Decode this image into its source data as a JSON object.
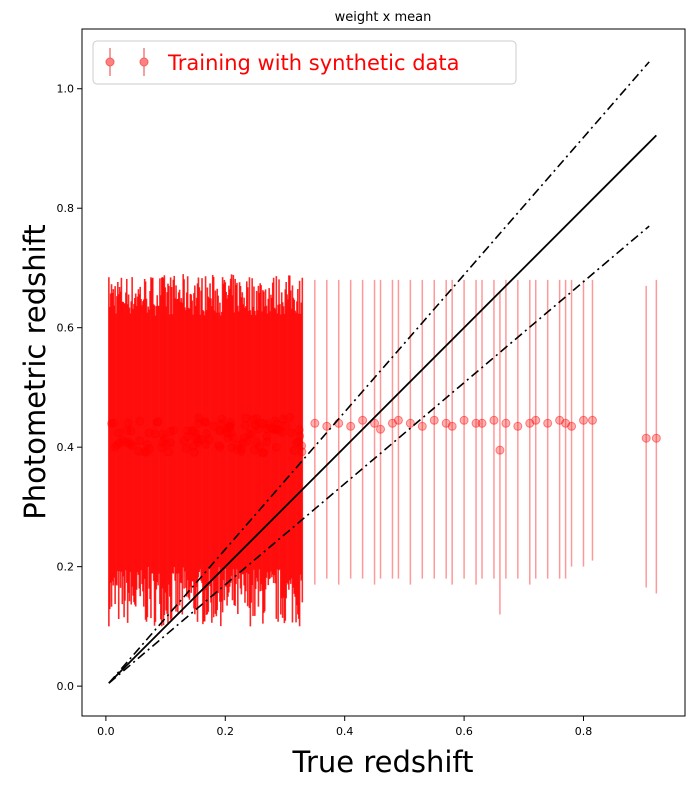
{
  "chart_data": {
    "type": "scatter",
    "title": "weight x mean",
    "xlabel": "True redshift",
    "ylabel": "Photometric redshift",
    "xlim": [
      -0.04,
      0.97
    ],
    "ylim": [
      -0.05,
      1.1
    ],
    "xticks": [
      "0.0",
      "0.2",
      "0.4",
      "0.6",
      "0.8"
    ],
    "yticks": [
      "0.0",
      "0.2",
      "0.4",
      "0.6",
      "0.8",
      "1.0"
    ],
    "grid": false,
    "legend": {
      "placement": "top-left",
      "entries": [
        {
          "label": "Training with synthetic data",
          "color": "#ff0000"
        }
      ]
    },
    "series": [
      {
        "name": "Training with synthetic data",
        "color": "#ff0000",
        "marker": "circle",
        "error_bars": "vertical",
        "dense_region": {
          "x_range": [
            0.005,
            0.33
          ],
          "y_mean": 0.42,
          "yerr_low": [
            0.1,
            0.2
          ],
          "yerr_high": [
            0.62,
            0.69
          ]
        },
        "points": [
          {
            "x": 0.35,
            "y": 0.44,
            "ylo": 0.17,
            "yhi": 0.68
          },
          {
            "x": 0.37,
            "y": 0.435,
            "ylo": 0.18,
            "yhi": 0.68
          },
          {
            "x": 0.39,
            "y": 0.44,
            "ylo": 0.17,
            "yhi": 0.68
          },
          {
            "x": 0.41,
            "y": 0.435,
            "ylo": 0.18,
            "yhi": 0.68
          },
          {
            "x": 0.43,
            "y": 0.445,
            "ylo": 0.18,
            "yhi": 0.68
          },
          {
            "x": 0.45,
            "y": 0.44,
            "ylo": 0.17,
            "yhi": 0.68
          },
          {
            "x": 0.46,
            "y": 0.43,
            "ylo": 0.18,
            "yhi": 0.68
          },
          {
            "x": 0.48,
            "y": 0.44,
            "ylo": 0.18,
            "yhi": 0.68
          },
          {
            "x": 0.49,
            "y": 0.445,
            "ylo": 0.18,
            "yhi": 0.68
          },
          {
            "x": 0.51,
            "y": 0.44,
            "ylo": 0.17,
            "yhi": 0.68
          },
          {
            "x": 0.53,
            "y": 0.435,
            "ylo": 0.18,
            "yhi": 0.68
          },
          {
            "x": 0.55,
            "y": 0.445,
            "ylo": 0.18,
            "yhi": 0.68
          },
          {
            "x": 0.57,
            "y": 0.44,
            "ylo": 0.18,
            "yhi": 0.68
          },
          {
            "x": 0.58,
            "y": 0.435,
            "ylo": 0.17,
            "yhi": 0.68
          },
          {
            "x": 0.6,
            "y": 0.445,
            "ylo": 0.18,
            "yhi": 0.68
          },
          {
            "x": 0.62,
            "y": 0.44,
            "ylo": 0.17,
            "yhi": 0.68
          },
          {
            "x": 0.63,
            "y": 0.44,
            "ylo": 0.18,
            "yhi": 0.68
          },
          {
            "x": 0.65,
            "y": 0.445,
            "ylo": 0.18,
            "yhi": 0.68
          },
          {
            "x": 0.66,
            "y": 0.395,
            "ylo": 0.12,
            "yhi": 0.66
          },
          {
            "x": 0.67,
            "y": 0.44,
            "ylo": 0.18,
            "yhi": 0.68
          },
          {
            "x": 0.69,
            "y": 0.435,
            "ylo": 0.18,
            "yhi": 0.68
          },
          {
            "x": 0.71,
            "y": 0.44,
            "ylo": 0.17,
            "yhi": 0.68
          },
          {
            "x": 0.72,
            "y": 0.445,
            "ylo": 0.18,
            "yhi": 0.68
          },
          {
            "x": 0.74,
            "y": 0.44,
            "ylo": 0.18,
            "yhi": 0.68
          },
          {
            "x": 0.76,
            "y": 0.445,
            "ylo": 0.18,
            "yhi": 0.68
          },
          {
            "x": 0.77,
            "y": 0.44,
            "ylo": 0.18,
            "yhi": 0.68
          },
          {
            "x": 0.78,
            "y": 0.435,
            "ylo": 0.2,
            "yhi": 0.68
          },
          {
            "x": 0.8,
            "y": 0.445,
            "ylo": 0.2,
            "yhi": 0.68
          },
          {
            "x": 0.815,
            "y": 0.445,
            "ylo": 0.21,
            "yhi": 0.68
          },
          {
            "x": 0.905,
            "y": 0.415,
            "ylo": 0.165,
            "yhi": 0.67
          },
          {
            "x": 0.922,
            "y": 0.415,
            "ylo": 0.155,
            "yhi": 0.68
          }
        ]
      },
      {
        "kind": "line",
        "style": "solid",
        "color": "#000000",
        "x": [
          0.005,
          0.922
        ],
        "y": [
          0.005,
          0.922
        ]
      },
      {
        "kind": "line",
        "style": "dashdot",
        "color": "#000000",
        "x": [
          0.005,
          0.91
        ],
        "y": [
          0.005,
          1.045
        ]
      },
      {
        "kind": "line",
        "style": "dashdot",
        "color": "#000000",
        "x": [
          0.005,
          0.91
        ],
        "y": [
          0.005,
          0.77
        ]
      }
    ]
  }
}
